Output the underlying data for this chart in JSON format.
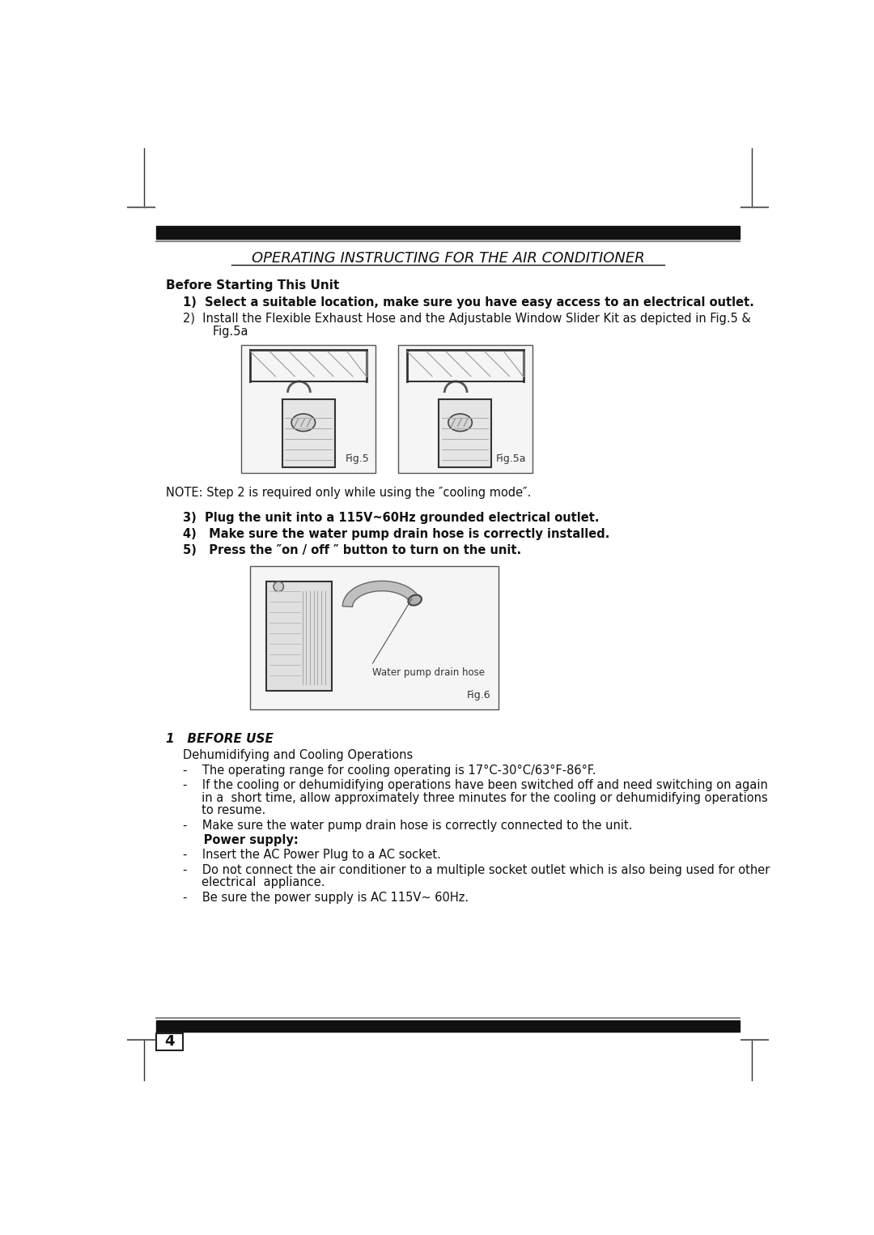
{
  "bg_color": "#ffffff",
  "title": "OPERATING INSTRUCTING FOR THE AIR CONDITIONER",
  "before_starting": "Before Starting This Unit",
  "item1": "1)  Select a suitable location, make sure you have easy access to an electrical outlet.",
  "item2_line1": "2)  Install the Flexible Exhaust Hose and the Adjustable Window Slider Kit as depicted in Fig.5 &",
  "item2_line2": "        Fig.5a",
  "note": "NOTE: Step 2 is required only while using the ″cooling mode″.",
  "item3": "3)  Plug the unit into a 115V~60Hz grounded electrical outlet.",
  "item4": "4)   Make sure the water pump drain hose is correctly installed.",
  "item5": "5)   Press the ″on / off ″ button to turn on the unit.",
  "section1_title": "1   BEFORE USE",
  "section1_sub": "Dehumidifying and Cooling Operations",
  "bullet1": "-    The operating range for cooling operating is 17°C-30°C/63°F-86°F.",
  "bullet2_line1": "-    If the cooling or dehumidifying operations have been switched off and need switching on again",
  "bullet2_line2": "     in a  short time, allow approximately three minutes for the cooling or dehumidifying operations",
  "bullet2_line3": "     to resume.",
  "bullet3": "-    Make sure the water pump drain hose is correctly connected to the unit.",
  "power_supply": "     Power supply:",
  "ps_bullet1": "-    Insert the AC Power Plug to a AC socket.",
  "ps_bullet2_line1": "-    Do not connect the air conditioner to a multiple socket outlet which is also being used for other",
  "ps_bullet2_line2": "     electrical  appliance.",
  "ps_bullet3": "-    Be sure the power supply is AC 115V~ 60Hz.",
  "page_number": "4",
  "fig5_label": "Fig.5",
  "fig5a_label": "Fig.5a",
  "fig6_label": "Fig.6",
  "water_pump_label": "Water pump drain hose"
}
